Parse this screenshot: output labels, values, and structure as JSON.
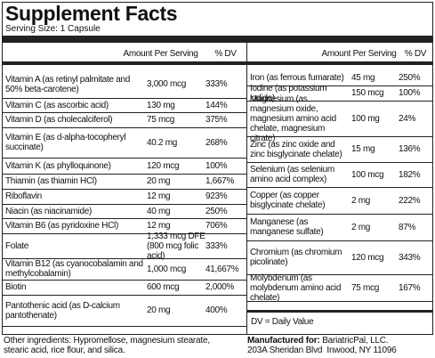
{
  "header": {
    "title": "Supplement Facts",
    "serving_size": "Serving Size: 1 Capsule"
  },
  "table": {
    "amount_header": "Amount Per Serving",
    "dv_header": "% DV",
    "left_rows": [
      [
        "Vitamin A (as retinyl palmitate and 50% beta-carotene)",
        "3,000 mcg",
        "333%"
      ],
      [
        "Vitamin C (as ascorbic acid)",
        "130 mg",
        "144%"
      ],
      [
        "Vitamin D (as cholecalciferol)",
        "75 mcg",
        "375%"
      ],
      [
        "Vitamin E (as d-alpha-tocopheryl succinate)",
        "40.2 mg",
        "268%"
      ],
      [
        "Vitamin K (as phylloquinone)",
        "120 mcg",
        "100%"
      ],
      [
        "Thiamin (as thiamin HCl)",
        "20 mg",
        "1,667%"
      ],
      [
        "Riboflavin",
        "12 mg",
        "923%"
      ],
      [
        "Niacin (as niacinamide)",
        "40 mg",
        "250%"
      ],
      [
        "Vitamin B6 (as pyridoxine HCl)",
        "12 mg",
        "706%"
      ],
      [
        "Folate",
        "1,333 mcg DFE (800 mcg folic acid)",
        "333%"
      ],
      [
        "Vitamin B12 (as cyanocobalamin and methylcobalamin)",
        "1,000 mcg",
        "41,667%"
      ],
      [
        "Biotin",
        "600 mcg",
        "2,000%"
      ],
      [
        "Pantothenic acid (as D-calcium pantothenate)",
        "20 mg",
        "400%"
      ]
    ],
    "right_rows": [
      [
        "Iron (as ferrous fumarate)",
        "45 mg",
        "250%"
      ],
      [
        "Iodine (as potassium iodide)",
        "150 mcg",
        "100%"
      ],
      [
        "Magnesium (as magnesium oxide, magnesium amino acid chelate, magnesium citrate)",
        "100 mg",
        "24%"
      ],
      [
        "Zinc (as zinc oxide and zinc bisglycinate chelate)",
        "15 mg",
        "136%"
      ],
      [
        "Selenium (as selenium amino acid complex)",
        "100 mcg",
        "182%"
      ],
      [
        "Copper (as copper bisglycinate chelate)",
        "2 mg",
        "222%"
      ],
      [
        "Manganese (as manganese sulfate)",
        "2 mg",
        "87%"
      ],
      [
        "Chromium (as chromium picolinate)",
        "120 mcg",
        "343%"
      ],
      [
        "Molybdenum (as molybdenum amino acid chelate)",
        "75 mcg",
        "167%"
      ]
    ],
    "footnote": "DV = Daily Value"
  },
  "footer": {
    "other_ingredients": "Other ingredients: Hypromellose, magnesium stearate, stearic acid, rice flour, and silica.",
    "manufactured_label": "Manufactured for:",
    "manufacturer": "BariatricPal, LLC.",
    "address": "203A Sheridan Blvd  Inwood, NY 11096"
  }
}
